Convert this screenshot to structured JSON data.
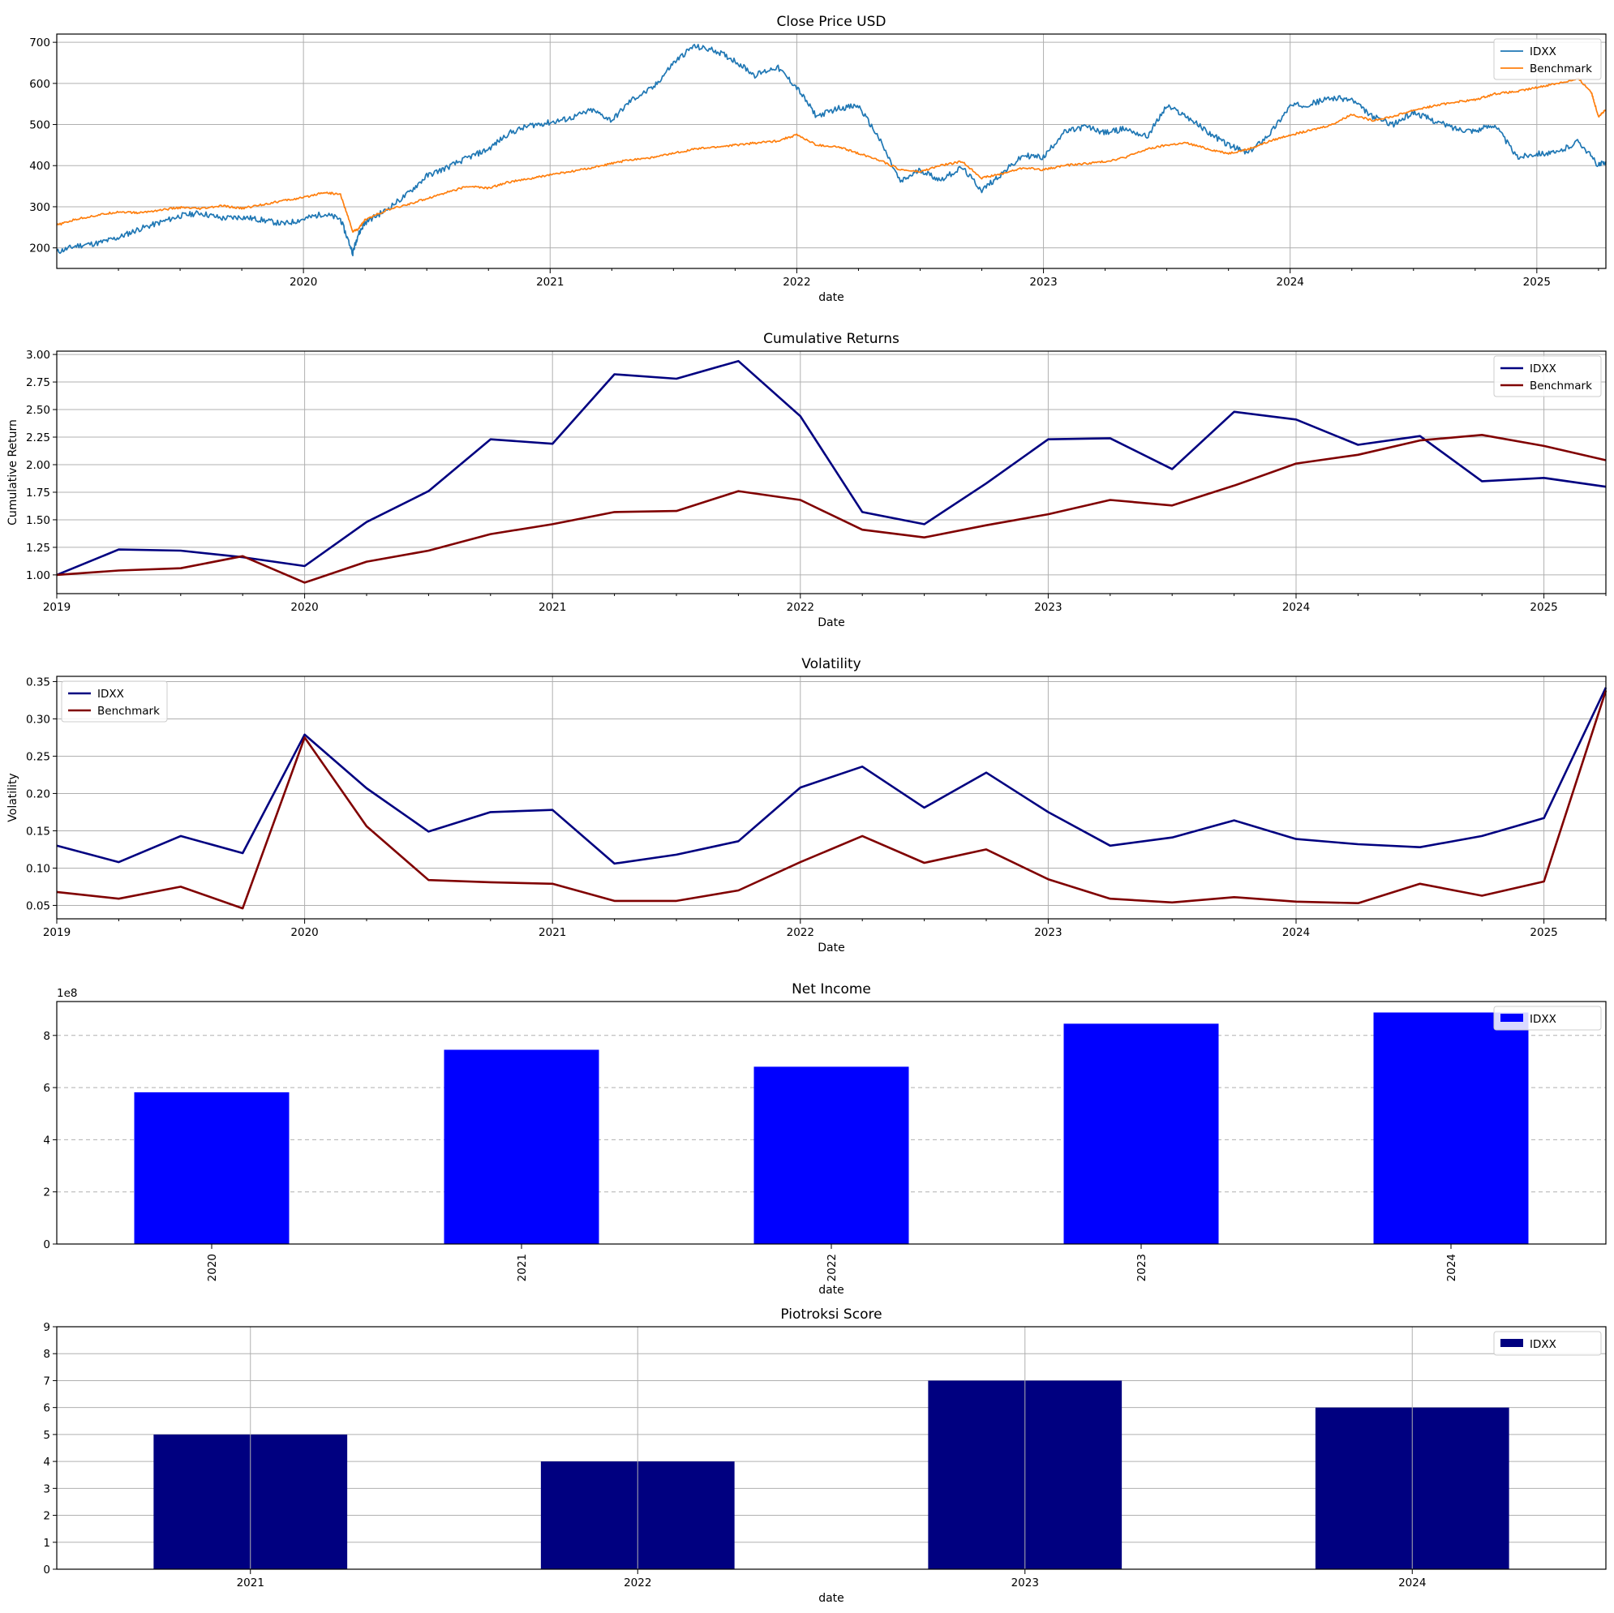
{
  "chart_data": [
    {
      "type": "line",
      "title": "Close Price USD",
      "xlabel": "date",
      "ylabel": "",
      "x_ticks": [
        "2020",
        "2021",
        "2022",
        "2023",
        "2024",
        "2025"
      ],
      "xlim": [
        2019.0,
        2025.28
      ],
      "ylim": [
        150,
        720
      ],
      "y_ticks": [
        200,
        300,
        400,
        500,
        600,
        700
      ],
      "grid": true,
      "legend": "top-right",
      "series": [
        {
          "name": "IDXX",
          "color": "#1f77b4",
          "x": [
            2019.0,
            2019.08,
            2019.17,
            2019.25,
            2019.33,
            2019.42,
            2019.5,
            2019.58,
            2019.67,
            2019.75,
            2019.83,
            2019.92,
            2020.0,
            2020.08,
            2020.15,
            2020.2,
            2020.22,
            2020.25,
            2020.33,
            2020.42,
            2020.5,
            2020.58,
            2020.67,
            2020.75,
            2020.83,
            2020.92,
            2021.0,
            2021.08,
            2021.17,
            2021.25,
            2021.33,
            2021.42,
            2021.5,
            2021.58,
            2021.67,
            2021.75,
            2021.83,
            2021.92,
            2022.0,
            2022.08,
            2022.17,
            2022.25,
            2022.33,
            2022.42,
            2022.5,
            2022.58,
            2022.67,
            2022.75,
            2022.83,
            2022.92,
            2023.0,
            2023.08,
            2023.17,
            2023.25,
            2023.33,
            2023.42,
            2023.5,
            2023.58,
            2023.67,
            2023.75,
            2023.83,
            2023.92,
            2024.0,
            2024.08,
            2024.17,
            2024.25,
            2024.33,
            2024.42,
            2024.5,
            2024.58,
            2024.67,
            2024.75,
            2024.83,
            2024.92,
            2025.0,
            2025.08,
            2025.17,
            2025.25,
            2025.28
          ],
          "y": [
            190,
            205,
            212,
            225,
            245,
            262,
            278,
            285,
            272,
            275,
            268,
            258,
            270,
            283,
            270,
            188,
            230,
            262,
            290,
            330,
            375,
            395,
            420,
            440,
            478,
            498,
            505,
            515,
            535,
            510,
            560,
            590,
            650,
            690,
            680,
            655,
            620,
            640,
            590,
            520,
            540,
            545,
            470,
            360,
            390,
            365,
            395,
            340,
            380,
            425,
            420,
            480,
            495,
            480,
            490,
            470,
            545,
            520,
            480,
            450,
            430,
            480,
            545,
            550,
            565,
            560,
            520,
            500,
            530,
            510,
            490,
            485,
            500,
            420,
            430,
            430,
            460,
            400,
            410
          ]
        },
        {
          "name": "Benchmark",
          "color": "#ff7f0e",
          "x": [
            2019.0,
            2019.08,
            2019.17,
            2019.25,
            2019.33,
            2019.42,
            2019.5,
            2019.58,
            2019.67,
            2019.75,
            2019.83,
            2019.92,
            2020.0,
            2020.08,
            2020.15,
            2020.2,
            2020.22,
            2020.25,
            2020.33,
            2020.42,
            2020.5,
            2020.58,
            2020.67,
            2020.75,
            2020.83,
            2020.92,
            2021.0,
            2021.08,
            2021.17,
            2021.25,
            2021.33,
            2021.42,
            2021.5,
            2021.58,
            2021.67,
            2021.75,
            2021.83,
            2021.92,
            2022.0,
            2022.08,
            2022.17,
            2022.25,
            2022.33,
            2022.42,
            2022.5,
            2022.58,
            2022.67,
            2022.75,
            2022.83,
            2022.92,
            2023.0,
            2023.08,
            2023.17,
            2023.25,
            2023.33,
            2023.42,
            2023.5,
            2023.58,
            2023.67,
            2023.75,
            2023.83,
            2023.92,
            2024.0,
            2024.08,
            2024.17,
            2024.25,
            2024.33,
            2024.42,
            2024.5,
            2024.58,
            2024.67,
            2024.75,
            2024.83,
            2024.92,
            2025.0,
            2025.08,
            2025.17,
            2025.22,
            2025.25,
            2025.28
          ],
          "y": [
            255,
            270,
            280,
            288,
            285,
            292,
            298,
            295,
            302,
            296,
            305,
            315,
            322,
            335,
            330,
            240,
            245,
            268,
            290,
            305,
            320,
            335,
            350,
            345,
            360,
            368,
            378,
            385,
            395,
            405,
            415,
            420,
            430,
            440,
            445,
            450,
            455,
            460,
            475,
            450,
            445,
            430,
            415,
            390,
            385,
            400,
            410,
            370,
            380,
            395,
            390,
            400,
            405,
            410,
            420,
            440,
            450,
            455,
            440,
            430,
            440,
            460,
            475,
            485,
            500,
            525,
            510,
            520,
            535,
            545,
            555,
            560,
            575,
            580,
            590,
            600,
            610,
            580,
            520,
            535
          ]
        }
      ]
    },
    {
      "type": "line",
      "title": "Cumulative Returns",
      "xlabel": "Date",
      "ylabel": "Cumulative Return",
      "x_ticks": [
        "2019",
        "2020",
        "2021",
        "2022",
        "2023",
        "2024",
        "2025"
      ],
      "xlim": [
        2019.0,
        2025.25
      ],
      "ylim": [
        0.83,
        3.03
      ],
      "y_ticks": [
        1.0,
        1.25,
        1.5,
        1.75,
        2.0,
        2.25,
        2.5,
        2.75,
        3.0
      ],
      "grid": true,
      "legend": "top-right",
      "series": [
        {
          "name": "IDXX",
          "color": "#000080",
          "x": [
            2019.0,
            2019.25,
            2019.5,
            2019.75,
            2020.0,
            2020.25,
            2020.5,
            2020.75,
            2021.0,
            2021.25,
            2021.5,
            2021.75,
            2022.0,
            2022.25,
            2022.5,
            2022.75,
            2023.0,
            2023.25,
            2023.5,
            2023.75,
            2024.0,
            2024.25,
            2024.5,
            2024.75,
            2025.0,
            2025.25
          ],
          "y": [
            1.0,
            1.23,
            1.22,
            1.16,
            1.08,
            1.48,
            1.76,
            2.23,
            2.19,
            2.82,
            2.78,
            2.94,
            2.44,
            1.57,
            1.46,
            1.83,
            2.23,
            2.24,
            1.96,
            2.48,
            2.41,
            2.18,
            2.26,
            1.85,
            1.88,
            1.8
          ]
        },
        {
          "name": "Benchmark",
          "color": "#800000",
          "x": [
            2019.0,
            2019.25,
            2019.5,
            2019.75,
            2020.0,
            2020.25,
            2020.5,
            2020.75,
            2021.0,
            2021.25,
            2021.5,
            2021.75,
            2022.0,
            2022.25,
            2022.5,
            2022.75,
            2023.0,
            2023.25,
            2023.5,
            2023.75,
            2024.0,
            2024.25,
            2024.5,
            2024.75,
            2025.0,
            2025.25
          ],
          "y": [
            1.0,
            1.04,
            1.06,
            1.17,
            0.93,
            1.12,
            1.22,
            1.37,
            1.46,
            1.57,
            1.58,
            1.76,
            1.68,
            1.41,
            1.34,
            1.45,
            1.55,
            1.68,
            1.63,
            1.81,
            2.01,
            2.09,
            2.22,
            2.27,
            2.17,
            2.04
          ]
        }
      ]
    },
    {
      "type": "line",
      "title": "Volatility",
      "xlabel": "Date",
      "ylabel": "Volatility",
      "x_ticks": [
        "2019",
        "2020",
        "2021",
        "2022",
        "2023",
        "2024",
        "2025"
      ],
      "xlim": [
        2019.0,
        2025.25
      ],
      "ylim": [
        0.032,
        0.357
      ],
      "y_ticks": [
        0.05,
        0.1,
        0.15,
        0.2,
        0.25,
        0.3,
        0.35
      ],
      "grid": true,
      "legend": "top-left",
      "series": [
        {
          "name": "IDXX",
          "color": "#000080",
          "x": [
            2019.0,
            2019.25,
            2019.5,
            2019.75,
            2020.0,
            2020.25,
            2020.5,
            2020.75,
            2021.0,
            2021.25,
            2021.5,
            2021.75,
            2022.0,
            2022.25,
            2022.5,
            2022.75,
            2023.0,
            2023.25,
            2023.5,
            2023.75,
            2024.0,
            2024.25,
            2024.5,
            2024.75,
            2025.0,
            2025.25
          ],
          "y": [
            0.13,
            0.108,
            0.143,
            0.12,
            0.279,
            0.207,
            0.149,
            0.175,
            0.178,
            0.106,
            0.118,
            0.136,
            0.208,
            0.236,
            0.181,
            0.228,
            0.175,
            0.13,
            0.141,
            0.164,
            0.139,
            0.132,
            0.128,
            0.143,
            0.167,
            0.342
          ]
        },
        {
          "name": "Benchmark",
          "color": "#800000",
          "x": [
            2019.0,
            2019.25,
            2019.5,
            2019.75,
            2020.0,
            2020.25,
            2020.5,
            2020.75,
            2021.0,
            2021.25,
            2021.5,
            2021.75,
            2022.0,
            2022.25,
            2022.5,
            2022.75,
            2023.0,
            2023.25,
            2023.5,
            2023.75,
            2024.0,
            2024.25,
            2024.5,
            2024.75,
            2025.0,
            2025.25
          ],
          "y": [
            0.068,
            0.059,
            0.075,
            0.046,
            0.275,
            0.156,
            0.084,
            0.081,
            0.079,
            0.056,
            0.056,
            0.07,
            0.108,
            0.143,
            0.107,
            0.125,
            0.085,
            0.059,
            0.054,
            0.061,
            0.055,
            0.053,
            0.079,
            0.063,
            0.082,
            0.338
          ]
        }
      ]
    },
    {
      "type": "bar",
      "title": "Net Income",
      "xlabel": "date",
      "ylabel": "",
      "scale_note": "1e8",
      "categories": [
        "2020",
        "2021",
        "2022",
        "2023",
        "2024"
      ],
      "ylim": [
        0,
        9.3
      ],
      "y_ticks": [
        0,
        2,
        4,
        6,
        8
      ],
      "grid": "y-dashed",
      "legend": "top-right",
      "series": [
        {
          "name": "IDXX",
          "color": "#0000ff",
          "values": [
            5.82,
            7.45,
            6.8,
            8.45,
            8.88
          ]
        }
      ]
    },
    {
      "type": "bar",
      "title": "Piotroksi Score",
      "xlabel": "date",
      "ylabel": "",
      "categories": [
        "2021",
        "2022",
        "2023",
        "2024"
      ],
      "ylim": [
        0,
        9
      ],
      "y_ticks": [
        0,
        1,
        2,
        3,
        4,
        5,
        6,
        7,
        8,
        9
      ],
      "grid": true,
      "legend": "top-right",
      "series": [
        {
          "name": "IDXX",
          "color": "#000080",
          "values": [
            5,
            4,
            7,
            6
          ]
        }
      ]
    }
  ]
}
